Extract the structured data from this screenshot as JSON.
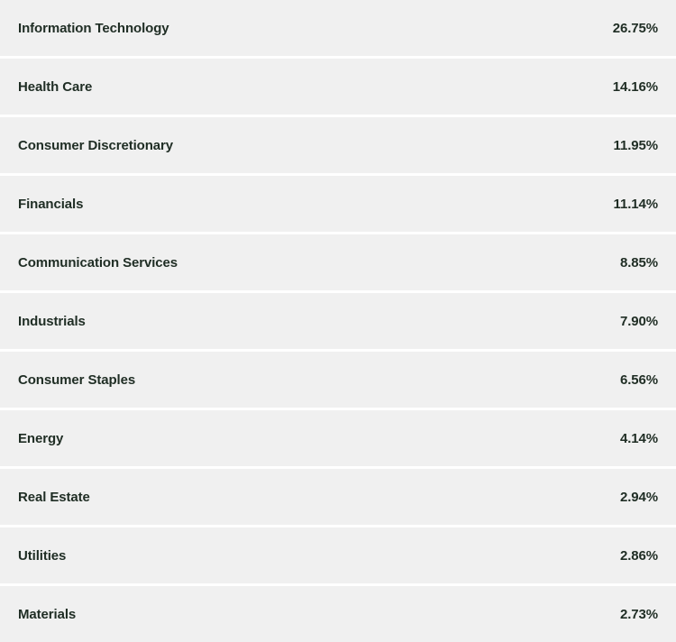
{
  "sectors": [
    {
      "name": "Information Technology",
      "weight": "26.75%"
    },
    {
      "name": "Health Care",
      "weight": "14.16%"
    },
    {
      "name": "Consumer Discretionary",
      "weight": "11.95%"
    },
    {
      "name": "Financials",
      "weight": "11.14%"
    },
    {
      "name": "Communication Services",
      "weight": "8.85%"
    },
    {
      "name": "Industrials",
      "weight": "7.90%"
    },
    {
      "name": "Consumer Staples",
      "weight": "6.56%"
    },
    {
      "name": "Energy",
      "weight": "4.14%"
    },
    {
      "name": "Real Estate",
      "weight": "2.94%"
    },
    {
      "name": "Utilities",
      "weight": "2.86%"
    },
    {
      "name": "Materials",
      "weight": "2.73%"
    }
  ]
}
